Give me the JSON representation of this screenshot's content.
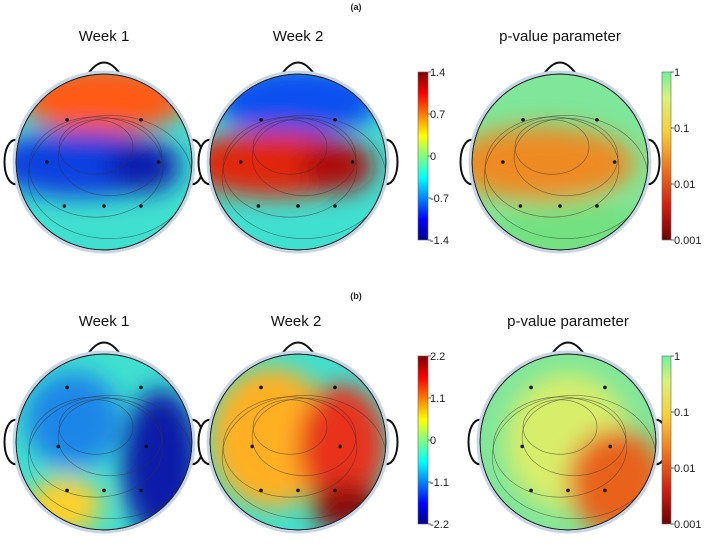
{
  "panels": [
    {
      "label": "(a)",
      "titles": [
        "Week 1",
        "Week 2",
        "p-value parameter"
      ],
      "amplitude_colorbar": {
        "ticks": [
          "1.4",
          "0.7",
          "0",
          "-0.7",
          "-1.4"
        ]
      },
      "pvalue_colorbar": {
        "ticks": [
          "1",
          "0.1",
          "0.01",
          "0.001"
        ],
        "scale": "log"
      },
      "maps": [
        {
          "name": "week-1",
          "colormap": "jet",
          "blobs": [
            {
              "color": "#ff5a12",
              "strength": 1.0
            },
            {
              "color": "#1040e0",
              "strength": 1.0
            },
            {
              "color": "#0a18a8",
              "strength": 0.9
            }
          ]
        },
        {
          "name": "week-2",
          "colormap": "jet",
          "blobs": [
            {
              "color": "#1050f0",
              "strength": 1.0
            },
            {
              "color": "#e02510",
              "strength": 1.0
            },
            {
              "color": "#a80e0e",
              "strength": 0.9
            }
          ]
        },
        {
          "name": "p-value",
          "colormap": "pvalue",
          "blobs": [
            {
              "color": "#ee8a22",
              "strength": 1.0
            },
            {
              "color": "#6fe07a",
              "strength": 0.8
            }
          ]
        }
      ]
    },
    {
      "label": "(b)",
      "titles": [
        "Week 1",
        "Week 2",
        "p-value parameter"
      ],
      "amplitude_colorbar": {
        "ticks": [
          "2.2",
          "1.1",
          "0",
          "-1.1",
          "-2.2"
        ]
      },
      "pvalue_colorbar": {
        "ticks": [
          "1",
          "0.1",
          "0.01",
          "0.001"
        ],
        "scale": "log"
      },
      "maps": [
        {
          "name": "week-1",
          "colormap": "jet",
          "blobs": [
            {
              "color": "#1a86e8",
              "strength": 1.0
            },
            {
              "color": "#0a1ea8",
              "strength": 1.0
            },
            {
              "color": "#ffd02a",
              "strength": 1.0
            }
          ]
        },
        {
          "name": "week-2",
          "colormap": "jet",
          "blobs": [
            {
              "color": "#ffb020",
              "strength": 1.0
            },
            {
              "color": "#e8301a",
              "strength": 1.0
            },
            {
              "color": "#8a0a0a",
              "strength": 1.0
            }
          ]
        },
        {
          "name": "p-value",
          "colormap": "pvalue",
          "blobs": [
            {
              "color": "#d8ee6a",
              "strength": 1.0
            },
            {
              "color": "#e8621a",
              "strength": 1.0
            }
          ]
        }
      ]
    }
  ]
}
